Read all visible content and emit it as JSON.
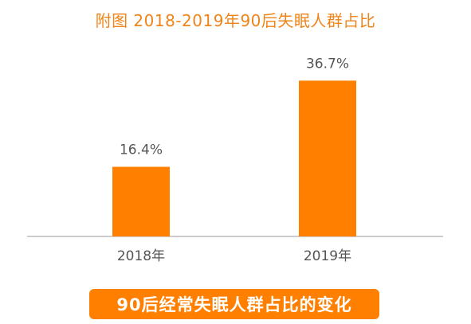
{
  "title": "附图  2018-2019年90后失眠人群占比",
  "caption": "90后经常失眠人群占比的变化",
  "colors": {
    "bar": "#ff8000",
    "title": "#f08419",
    "caption_bg": "#ff7f00",
    "caption_text": "#ffffff",
    "label_text": "#555555",
    "axis": "#999999"
  },
  "chart_data": {
    "type": "bar",
    "categories": [
      "2018年",
      "2019年"
    ],
    "values": [
      16.4,
      36.7
    ],
    "value_labels": [
      "16.4%",
      "36.7%"
    ],
    "title": "附图  2018-2019年90后失眠人群占比",
    "xlabel": "",
    "ylabel": "",
    "ylim": [
      0,
      40
    ],
    "grid": false,
    "legend": "none"
  }
}
